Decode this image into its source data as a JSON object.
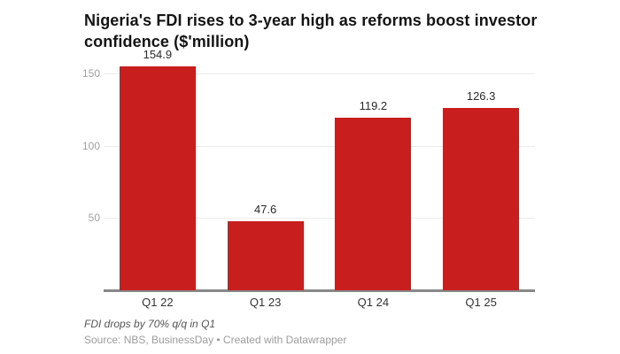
{
  "chart_data": {
    "type": "bar",
    "title": "Nigeria's FDI rises to 3-year high as reforms boost investor confidence ($'million)",
    "categories": [
      "Q1 22",
      "Q1 23",
      "Q1 24",
      "Q1 25"
    ],
    "values": [
      154.9,
      47.6,
      119.2,
      126.3
    ],
    "value_labels": [
      "154.9",
      "47.6",
      "119.2",
      "126.3"
    ],
    "xlabel": "",
    "ylabel": "",
    "yticks": [
      50,
      100,
      150
    ],
    "ylim": [
      0,
      164
    ],
    "grid": true,
    "legend": "none",
    "bar_color": "#c81e1d",
    "note": "FDI drops by 70% q/q in Q1",
    "source": "Source: NBS, BusinessDay • Created with Datawrapper"
  },
  "colors": {
    "background": "#ffffff",
    "gridline": "#ebebeb",
    "axis_line": "#888888",
    "ytick_text": "#a2a2a2",
    "xtick_text": "#333333",
    "value_text": "#2a2a2a",
    "title_text": "#141414",
    "note_text": "#565656",
    "source_text": "#9c9c9c"
  }
}
